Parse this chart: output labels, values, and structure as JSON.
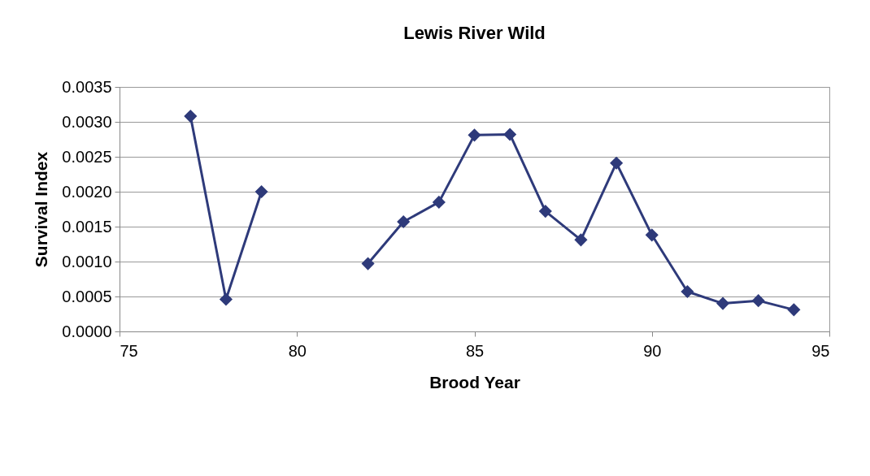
{
  "chart_data": {
    "type": "line",
    "title": "Lewis River Wild",
    "xlabel": "Brood Year",
    "ylabel": "Survival Index",
    "x": [
      77,
      78,
      79,
      80,
      81,
      82,
      83,
      84,
      85,
      86,
      87,
      88,
      89,
      90,
      91,
      92,
      93,
      94
    ],
    "series": [
      {
        "color": "#2e3a7a",
        "values": [
          0.00308,
          0.00046,
          0.002,
          null,
          null,
          0.00097,
          0.00157,
          0.00185,
          0.00281,
          0.00282,
          0.00172,
          0.00131,
          0.00241,
          0.00138,
          0.00057,
          0.0004,
          0.00044,
          0.00031
        ]
      }
    ],
    "xlim": [
      75,
      95
    ],
    "xticks": [
      75,
      80,
      85,
      90,
      95
    ],
    "ylim": [
      0,
      0.0035
    ],
    "yticks": [
      {
        "value": 0,
        "label": "0.0000"
      },
      {
        "value": 0.0005,
        "label": "0.0005"
      },
      {
        "value": 0.001,
        "label": "0.0010"
      },
      {
        "value": 0.0015,
        "label": "0.0015"
      },
      {
        "value": 0.002,
        "label": "0.0020"
      },
      {
        "value": 0.0025,
        "label": "0.0025"
      },
      {
        "value": 0.003,
        "label": "0.0030"
      },
      {
        "value": 0.0035,
        "label": "0.0035"
      }
    ],
    "grid": "y",
    "legend": false,
    "marker": "diamond",
    "line_style": "solid"
  }
}
